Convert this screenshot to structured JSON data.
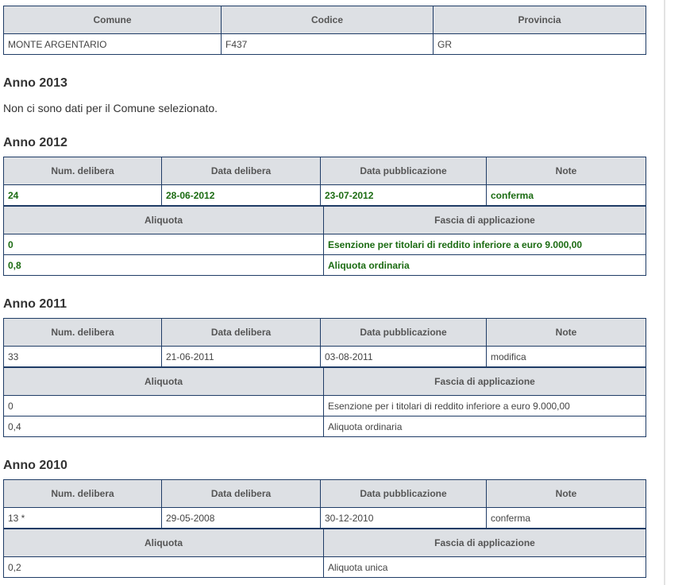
{
  "comune_table": {
    "headers": [
      "Comune",
      "Codice",
      "Provincia"
    ],
    "row": [
      "MONTE ARGENTARIO",
      "F437",
      "GR"
    ]
  },
  "years": [
    {
      "title": "Anno 2013",
      "message": "Non ci sono dati per il Comune selezionato."
    },
    {
      "title": "Anno 2012",
      "delibera_headers": [
        "Num. delibera",
        "Data delibera",
        "Data pubblicazione",
        "Note"
      ],
      "delibera_row": [
        "24",
        "28-06-2012",
        "23-07-2012",
        "conferma"
      ],
      "aliquote_headers": [
        "Aliquota",
        "Fascia di applicazione"
      ],
      "aliquote_rows": [
        [
          "0",
          "Esenzione per titolari di reddito inferiore a euro 9.000,00"
        ],
        [
          "0,8",
          "Aliquota ordinaria"
        ]
      ]
    },
    {
      "title": "Anno 2011",
      "delibera_headers": [
        "Num. delibera",
        "Data delibera",
        "Data pubblicazione",
        "Note"
      ],
      "delibera_row": [
        "33",
        "21-06-2011",
        "03-08-2011",
        "modifica"
      ],
      "aliquote_headers": [
        "Aliquota",
        "Fascia di applicazione"
      ],
      "aliquote_rows": [
        [
          "0",
          "Esenzione per i titolari di reddito inferiore a euro 9.000,00"
        ],
        [
          "0,4",
          "Aliquota ordinaria"
        ]
      ]
    },
    {
      "title": "Anno 2010",
      "delibera_headers": [
        "Num. delibera",
        "Data delibera",
        "Data pubblicazione",
        "Note"
      ],
      "delibera_row": [
        "13 *",
        "29-05-2008",
        "30-12-2010",
        "conferma"
      ],
      "aliquote_headers": [
        "Aliquota",
        "Fascia di applicazione"
      ],
      "aliquote_rows": [
        [
          "0,2",
          "Aliquota unica"
        ]
      ]
    }
  ],
  "colors": {
    "border": "#1f3c66",
    "header_bg": "#dde0e4",
    "highlight_text": "#1b6b12"
  }
}
